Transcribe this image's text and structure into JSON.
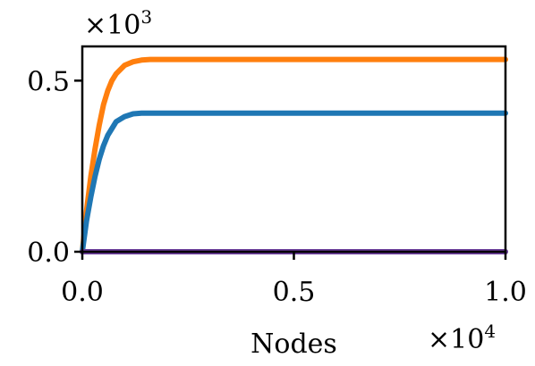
{
  "chart_data": {
    "type": "line",
    "title": "",
    "xlabel": "Nodes",
    "ylabel": "",
    "x_multiplier": {
      "base": "×10",
      "exp": "4"
    },
    "y_multiplier": {
      "base": "×10",
      "exp": "3"
    },
    "xlim": [
      0,
      1.0
    ],
    "ylim": [
      0,
      0.6
    ],
    "x_ticks": [
      {
        "value": 0.0,
        "label": "0.0"
      },
      {
        "value": 0.5,
        "label": "0.5"
      },
      {
        "value": 1.0,
        "label": "1.0"
      }
    ],
    "y_ticks": [
      {
        "value": 0.0,
        "label": "0.0"
      },
      {
        "value": 0.5,
        "label": "0.5"
      }
    ],
    "grid": false,
    "legend": "none",
    "series": [
      {
        "color": "#ff7f0e",
        "x": [
          0,
          0.01,
          0.02,
          0.03,
          0.04,
          0.05,
          0.06,
          0.07,
          0.08,
          0.1,
          0.12,
          0.14,
          0.16,
          0.2,
          0.3,
          0.5,
          0.7,
          1.0
        ],
        "y": [
          0,
          0.12,
          0.22,
          0.3,
          0.37,
          0.43,
          0.47,
          0.5,
          0.52,
          0.545,
          0.555,
          0.56,
          0.562,
          0.562,
          0.562,
          0.562,
          0.562,
          0.562
        ]
      },
      {
        "color": "#1f77b4",
        "x": [
          0,
          0.01,
          0.02,
          0.03,
          0.04,
          0.05,
          0.06,
          0.07,
          0.08,
          0.1,
          0.12,
          0.14,
          0.16,
          0.2,
          0.3,
          0.5,
          0.7,
          1.0
        ],
        "y": [
          0,
          0.09,
          0.16,
          0.22,
          0.27,
          0.31,
          0.34,
          0.36,
          0.38,
          0.395,
          0.403,
          0.405,
          0.405,
          0.405,
          0.405,
          0.405,
          0.405,
          0.405
        ]
      },
      {
        "color": "#6a3d9a",
        "x": [
          0,
          1.0
        ],
        "y": [
          0,
          0
        ]
      }
    ]
  }
}
